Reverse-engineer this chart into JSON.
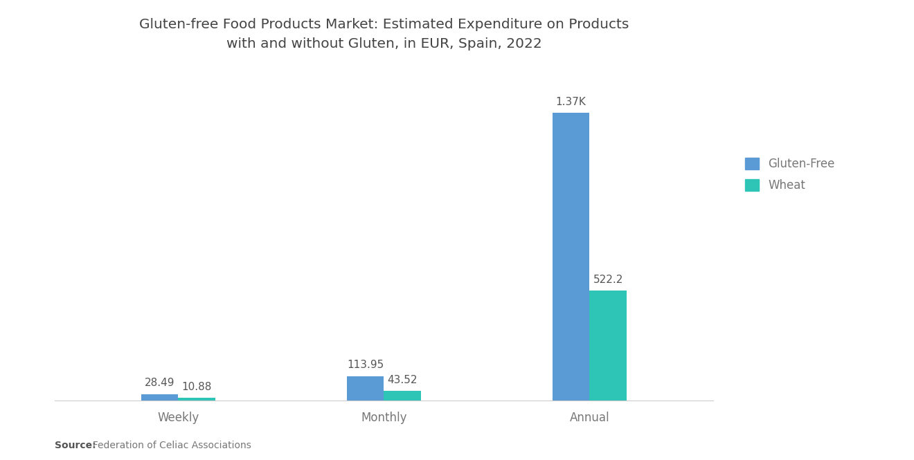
{
  "title": "Gluten-free Food Products Market: Estimated Expenditure on Products\nwith and without Gluten, in EUR, Spain, 2022",
  "categories": [
    "Weekly",
    "Monthly",
    "Annual"
  ],
  "gluten_free_values": [
    28.49,
    113.95,
    1370.0
  ],
  "wheat_values": [
    10.88,
    43.52,
    522.2
  ],
  "gluten_free_labels": [
    "28.49",
    "113.95",
    "1.37K"
  ],
  "wheat_labels": [
    "10.88",
    "43.52",
    "522.2"
  ],
  "gluten_free_color": "#5B9BD5",
  "wheat_color": "#2EC4B6",
  "background_color": "#FFFFFF",
  "title_fontsize": 14.5,
  "legend_labels": [
    "Gluten-Free",
    "Wheat"
  ],
  "source_bold": "Source:",
  "source_rest": "  Federation of Celiac Associations",
  "bar_width": 0.18,
  "ylim": [
    0,
    1580
  ]
}
